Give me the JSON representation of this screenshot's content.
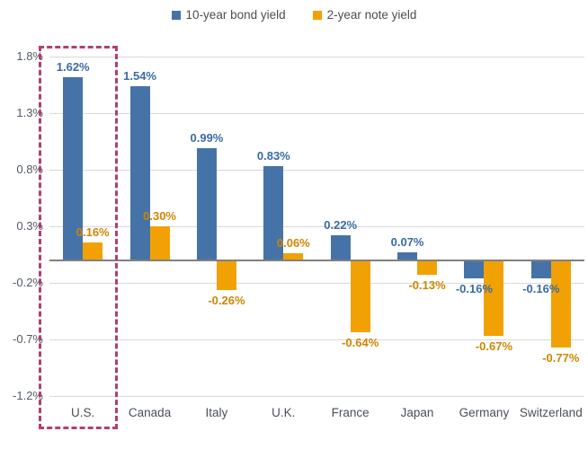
{
  "chart_data": {
    "type": "bar",
    "title": "",
    "xlabel": "",
    "ylabel": "",
    "categories": [
      "U.S.",
      "Canada",
      "Italy",
      "U.K.",
      "France",
      "Japan",
      "Germany",
      "Switzerland"
    ],
    "series": [
      {
        "name": "10-year bond yield",
        "color": "#4573a7",
        "label_color": "#3a6ba5",
        "values": [
          1.62,
          1.54,
          0.99,
          0.83,
          0.22,
          0.07,
          -0.16,
          -0.16
        ],
        "labels": [
          "1.62%",
          "1.54%",
          "0.99%",
          "0.83%",
          "0.22%",
          "0.07%",
          "-0.16%",
          "-0.16%"
        ]
      },
      {
        "name": "2-year note yield",
        "color": "#f2a104",
        "label_color": "#cf8500",
        "values": [
          0.16,
          0.3,
          -0.26,
          0.06,
          -0.64,
          -0.13,
          -0.67,
          -0.77
        ],
        "labels": [
          "0.16%",
          "0.30%",
          "-0.26%",
          "0.06%",
          "-0.64%",
          "-0.13%",
          "-0.67%",
          "-0.77%"
        ]
      }
    ],
    "ylim": [
      -1.2,
      1.8
    ],
    "ytick_values": [
      1.8,
      1.3,
      0.8,
      0.3,
      -0.2,
      -0.7,
      -1.2
    ],
    "ytick_labels": [
      "1.8%",
      "1.3%",
      "0.8%",
      "0.3%",
      "-0.2%",
      "-0.7%",
      "-1.2%"
    ],
    "grid": true,
    "zero_line": true,
    "legend_position": "top",
    "annotation": {
      "type": "dashed-highlight-box",
      "target_category": "U.S.",
      "color": "#b13f6f"
    },
    "colors": {
      "gridline": "#d9d9d9",
      "zero_line": "#808080",
      "axis_text": "#545b66",
      "category_text": "#4a5058",
      "legend_text": "#4d4d4d"
    }
  }
}
